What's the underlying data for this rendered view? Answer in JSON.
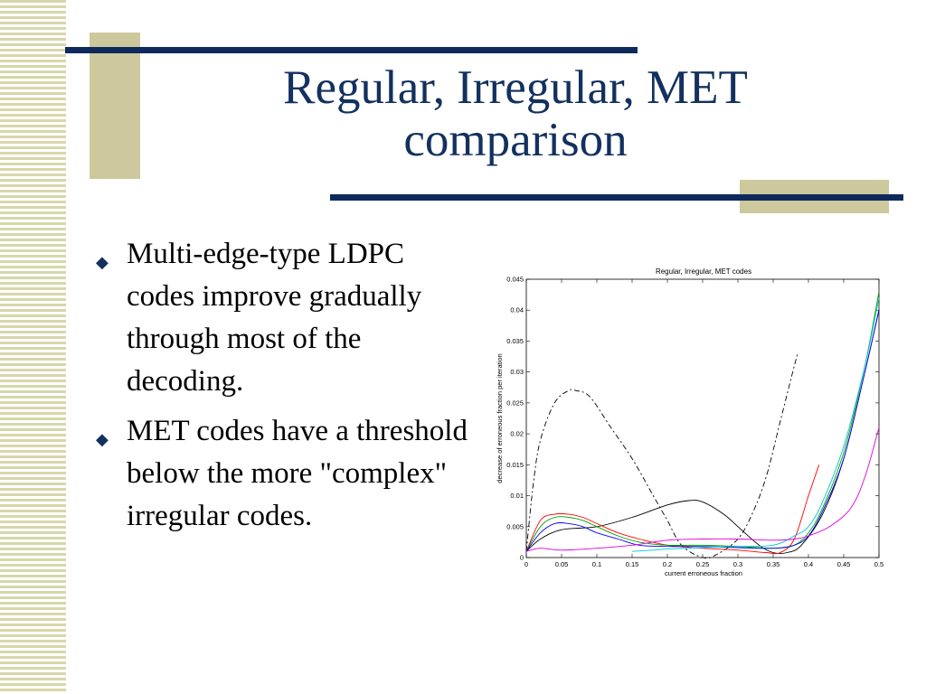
{
  "slide": {
    "title_lines": [
      "Regular, Irregular, MET",
      "comparison"
    ],
    "bullets": [
      "Multi-edge-type LDPC codes improve gradually through most of the decoding.",
      "MET codes have a threshold below the more \"complex\" irregular codes."
    ],
    "colors": {
      "title": "#13315f",
      "rule": "#0e2a5c",
      "accent": "#cdc99c"
    }
  },
  "chart_data": {
    "type": "line",
    "title": "Regular, Irregular, MET codes",
    "xlabel": "current erroneous fraction",
    "ylabel": "decrease of erroneous fraction per iteration",
    "xlim": [
      0,
      0.5
    ],
    "ylim": [
      0,
      0.045
    ],
    "xticks": [
      "0",
      "0.05",
      "0.1",
      "0.15",
      "0.2",
      "0.25",
      "0.3",
      "0.35",
      "0.4",
      "0.45",
      "0.5"
    ],
    "yticks": [
      "0",
      "0.005",
      "0.01",
      "0.015",
      "0.02",
      "0.025",
      "0.03",
      "0.035",
      "0.04",
      "0.045"
    ],
    "grid": false,
    "series": [
      {
        "color": "#000000",
        "dash": "6,3,2,3",
        "x": [
          0,
          0.01,
          0.02,
          0.04,
          0.06,
          0.07,
          0.09,
          0.12,
          0.15,
          0.18,
          0.2,
          0.22,
          0.25,
          0.27,
          0.3,
          0.32,
          0.34,
          0.36,
          0.38,
          0.385
        ],
        "y": [
          0.001,
          0.012,
          0.019,
          0.025,
          0.027,
          0.027,
          0.026,
          0.021,
          0.016,
          0.01,
          0.006,
          0.002,
          0,
          0.0005,
          0.003,
          0.007,
          0.013,
          0.022,
          0.031,
          0.033
        ]
      },
      {
        "color": "#000000",
        "dash": "",
        "x": [
          0,
          0.02,
          0.05,
          0.1,
          0.15,
          0.2,
          0.23,
          0.25,
          0.28,
          0.3,
          0.33,
          0.35,
          0.37,
          0.39,
          0.42,
          0.45,
          0.48,
          0.5
        ],
        "y": [
          0.001,
          0.003,
          0.0045,
          0.005,
          0.0065,
          0.0085,
          0.0092,
          0.009,
          0.007,
          0.005,
          0.002,
          0.0008,
          0.0008,
          0.002,
          0.007,
          0.016,
          0.03,
          0.04
        ]
      },
      {
        "color": "#ff0000",
        "dash": "",
        "x": [
          0,
          0.02,
          0.04,
          0.06,
          0.08,
          0.1,
          0.13,
          0.16,
          0.2,
          0.25,
          0.3,
          0.34,
          0.36,
          0.38,
          0.4,
          0.415
        ],
        "y": [
          0.001,
          0.006,
          0.007,
          0.007,
          0.0065,
          0.0055,
          0.004,
          0.003,
          0.002,
          0.0015,
          0.0012,
          0.0008,
          0.0008,
          0.003,
          0.01,
          0.015
        ]
      },
      {
        "color": "#00a000",
        "dash": "",
        "x": [
          0,
          0.02,
          0.04,
          0.06,
          0.08,
          0.1,
          0.13,
          0.16,
          0.2,
          0.25,
          0.3,
          0.35,
          0.38,
          0.4,
          0.42,
          0.45,
          0.48,
          0.5
        ],
        "y": [
          0.001,
          0.005,
          0.0065,
          0.0065,
          0.006,
          0.005,
          0.0035,
          0.0025,
          0.002,
          0.002,
          0.0018,
          0.0015,
          0.002,
          0.004,
          0.008,
          0.017,
          0.031,
          0.043
        ]
      },
      {
        "color": "#0000ff",
        "dash": "",
        "x": [
          0,
          0.02,
          0.04,
          0.06,
          0.08,
          0.1,
          0.13,
          0.16,
          0.2,
          0.25,
          0.3,
          0.35,
          0.38,
          0.4,
          0.42,
          0.45,
          0.48,
          0.5
        ],
        "y": [
          0.001,
          0.004,
          0.0055,
          0.0055,
          0.005,
          0.004,
          0.003,
          0.002,
          0.0018,
          0.0018,
          0.0016,
          0.0015,
          0.002,
          0.0035,
          0.0075,
          0.016,
          0.03,
          0.04
        ]
      },
      {
        "color": "#00c8c8",
        "dash": "",
        "x": [
          0.15,
          0.18,
          0.2,
          0.25,
          0.3,
          0.35,
          0.38,
          0.4,
          0.42,
          0.45,
          0.48,
          0.5
        ],
        "y": [
          0.001,
          0.0012,
          0.0014,
          0.0016,
          0.0018,
          0.002,
          0.0035,
          0.005,
          0.009,
          0.018,
          0.031,
          0.042
        ]
      },
      {
        "color": "#e000e0",
        "dash": "",
        "x": [
          0,
          0.02,
          0.05,
          0.1,
          0.15,
          0.2,
          0.25,
          0.3,
          0.35,
          0.38,
          0.4,
          0.43,
          0.46,
          0.48,
          0.5
        ],
        "y": [
          0.001,
          0.0015,
          0.0012,
          0.0015,
          0.002,
          0.0028,
          0.003,
          0.003,
          0.0028,
          0.003,
          0.0035,
          0.005,
          0.008,
          0.013,
          0.021
        ]
      }
    ]
  }
}
